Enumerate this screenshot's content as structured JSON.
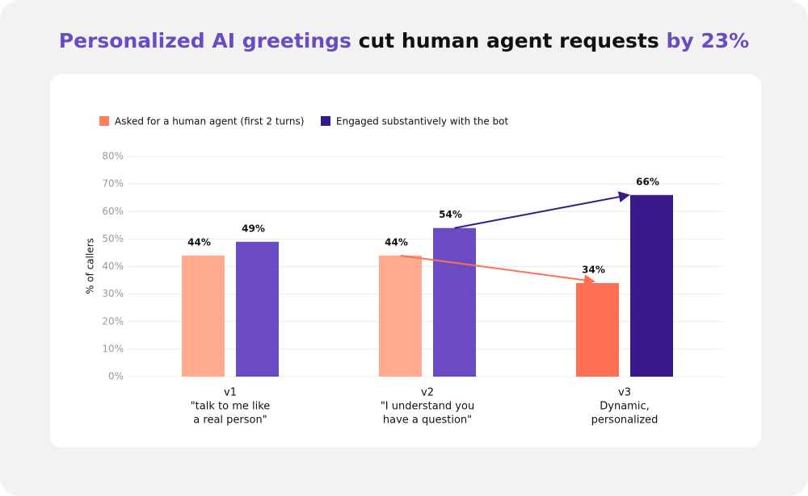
{
  "chart_data": {
    "type": "bar",
    "title_parts": [
      {
        "text": "Personalized AI greetings",
        "color": "#6a4bc4"
      },
      {
        "text": " cut human agent requests ",
        "color": "#111111"
      },
      {
        "text": "by 23%",
        "color": "#6a4bc4"
      }
    ],
    "y_label": "% of callers",
    "categories": [
      [
        "v1",
        "\"talk to me like",
        "a real person\""
      ],
      [
        "v2",
        "\"I understand you",
        "have a question\""
      ],
      [
        "v3",
        "Dynamic,",
        "personalized"
      ]
    ],
    "series": [
      {
        "name": "Asked for a human agent (first 2 turns)",
        "color": "#ff7f5f",
        "bar_colors": [
          "#ffaa8f",
          "#ffaa8f",
          "#ff7052"
        ],
        "values": [
          44,
          44,
          34
        ],
        "value_labels": [
          "44%",
          "44%",
          "34%"
        ]
      },
      {
        "name": "Engaged substantively with the bot",
        "color": "#3a1a8a",
        "bar_colors": [
          "#6a4bc4",
          "#6a4bc4",
          "#3a1a8a"
        ],
        "values": [
          49,
          54,
          66
        ],
        "value_labels": [
          "49%",
          "54%",
          "66%"
        ]
      }
    ],
    "ylim": [
      0,
      80
    ],
    "yticks": [
      {
        "value": 0,
        "label": "0%"
      },
      {
        "value": 10,
        "label": "10%"
      },
      {
        "value": 20,
        "label": "20%"
      },
      {
        "value": 30,
        "label": "30%"
      },
      {
        "value": 40,
        "label": "40%"
      },
      {
        "value": 50,
        "label": "50%"
      },
      {
        "value": 60,
        "label": "60%"
      },
      {
        "value": 70,
        "label": "70%"
      },
      {
        "value": 80,
        "label": "80%"
      }
    ],
    "grid": true
  }
}
